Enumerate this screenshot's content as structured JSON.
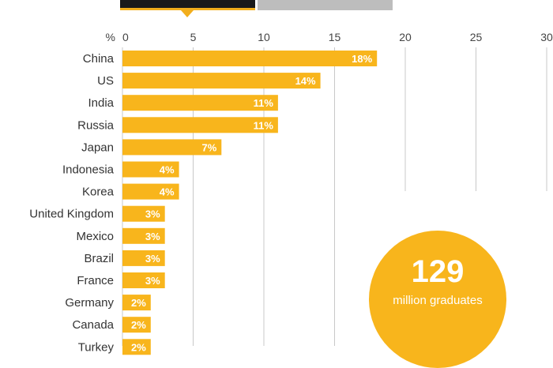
{
  "colors": {
    "bar": "#f8b51c",
    "grid": "#c8c8c8",
    "tab_active": "#1a1a1a",
    "tab_inactive": "#bdbdbd"
  },
  "chart_data": {
    "type": "bar",
    "orientation": "horizontal",
    "unit_label": "%",
    "xlim": [
      0,
      30
    ],
    "xticks": [
      0,
      5,
      10,
      15,
      20,
      25,
      30
    ],
    "grid": true,
    "categories": [
      "China",
      "US",
      "India",
      "Russia",
      "Japan",
      "Indonesia",
      "Korea",
      "United Kingdom",
      "Mexico",
      "Brazil",
      "France",
      "Germany",
      "Canada",
      "Turkey"
    ],
    "values": [
      18,
      14,
      11,
      11,
      7,
      4,
      4,
      3,
      3,
      3,
      3,
      2,
      2,
      2
    ],
    "value_labels": [
      "18%",
      "14%",
      "11%",
      "11%",
      "7%",
      "4%",
      "4%",
      "3%",
      "3%",
      "3%",
      "3%",
      "2%",
      "2%",
      "2%"
    ]
  },
  "callout": {
    "number": "129",
    "caption": "million graduates"
  }
}
